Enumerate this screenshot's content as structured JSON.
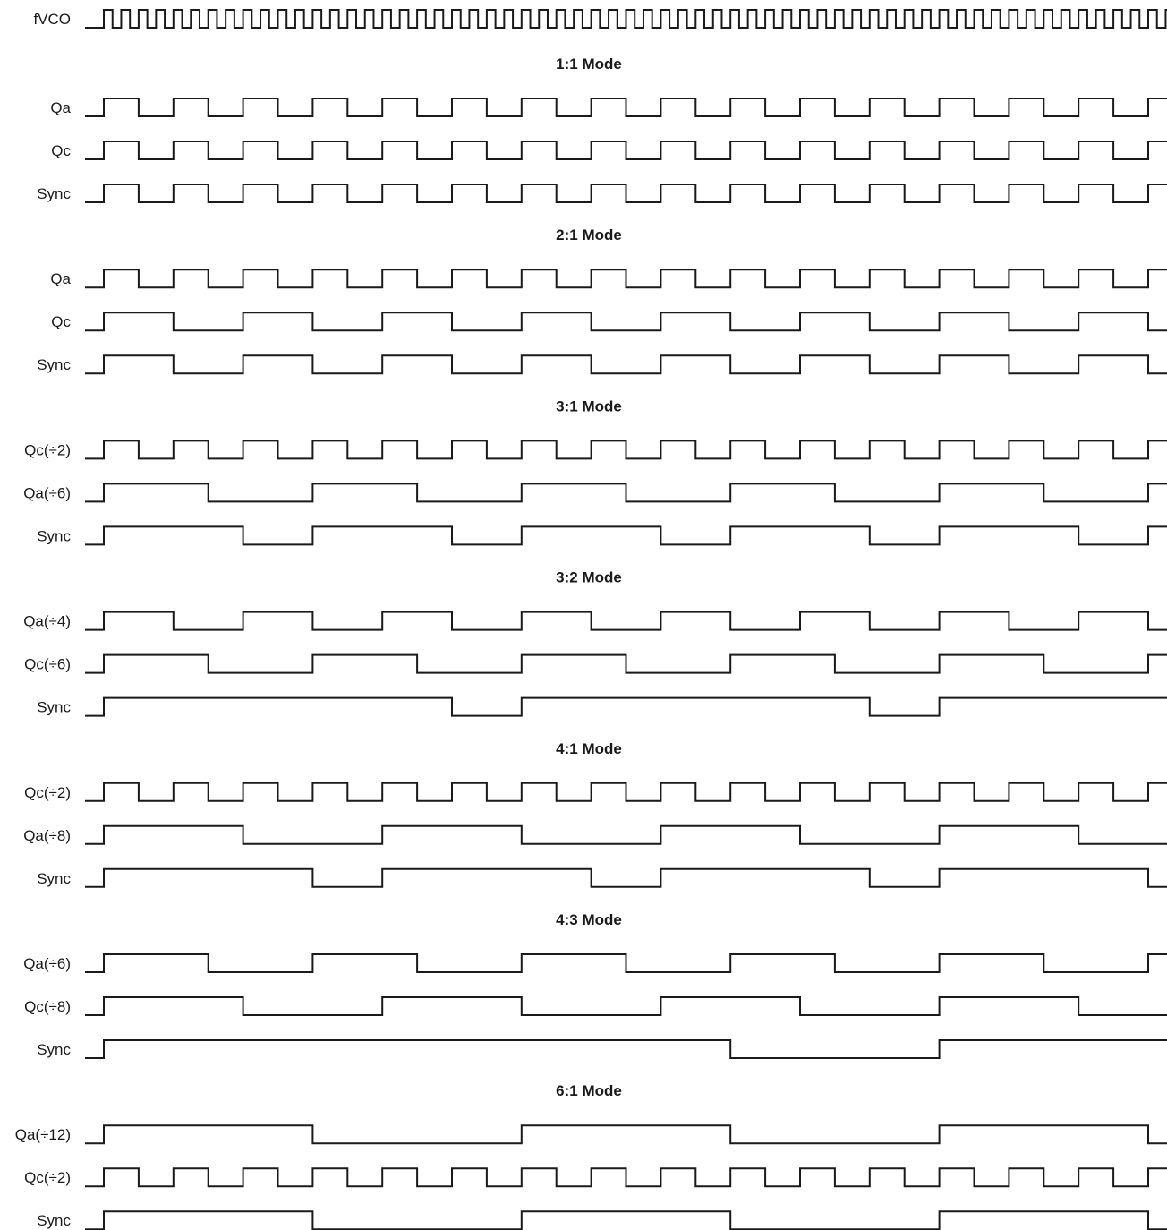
{
  "figure": {
    "clock": {
      "label": "fVCO",
      "period": 1,
      "duty": 0.5
    },
    "sections": [
      {
        "title": "1:1 Mode",
        "signals": [
          {
            "label": "Qa",
            "period": 2,
            "duty": 0.5
          },
          {
            "label": "Qc",
            "period": 2,
            "duty": 0.5
          },
          {
            "label": "Sync",
            "period": 2,
            "duty": 0.5
          }
        ]
      },
      {
        "title": "2:1 Mode",
        "signals": [
          {
            "label": "Qa",
            "period": 2,
            "duty": 0.5
          },
          {
            "label": "Qc",
            "period": 4,
            "duty": 0.5
          },
          {
            "label": "Sync",
            "period": 4,
            "duty": 0.5
          }
        ]
      },
      {
        "title": "3:1 Mode",
        "signals": [
          {
            "label": "Qc(÷2)",
            "period": 2,
            "duty": 0.5
          },
          {
            "label": "Qa(÷6)",
            "period": 6,
            "duty": 0.5
          },
          {
            "label": "Sync",
            "period": 6,
            "duty": 0.6667
          }
        ]
      },
      {
        "title": "3:2 Mode",
        "signals": [
          {
            "label": "Qa(÷4)",
            "period": 4,
            "duty": 0.5
          },
          {
            "label": "Qc(÷6)",
            "period": 6,
            "duty": 0.5
          },
          {
            "label": "Sync",
            "period": 12,
            "duty": 0.8333
          }
        ]
      },
      {
        "title": "4:1 Mode",
        "signals": [
          {
            "label": "Qc(÷2)",
            "period": 2,
            "duty": 0.5
          },
          {
            "label": "Qa(÷8)",
            "period": 8,
            "duty": 0.5
          },
          {
            "label": "Sync",
            "period": 8,
            "duty": 0.75
          }
        ]
      },
      {
        "title": "4:3 Mode",
        "signals": [
          {
            "label": "Qa(÷6)",
            "period": 6,
            "duty": 0.5
          },
          {
            "label": "Qc(÷8)",
            "period": 8,
            "duty": 0.5
          },
          {
            "label": "Sync",
            "period": 24,
            "duty": 0.75
          }
        ]
      },
      {
        "title": "6:1 Mode",
        "signals": [
          {
            "label": "Qa(÷12)",
            "period": 12,
            "duty": 0.5
          },
          {
            "label": "Qc(÷2)",
            "period": 2,
            "duty": 0.5
          },
          {
            "label": "Sync",
            "period": 12,
            "duty": 0.5
          }
        ]
      }
    ]
  }
}
